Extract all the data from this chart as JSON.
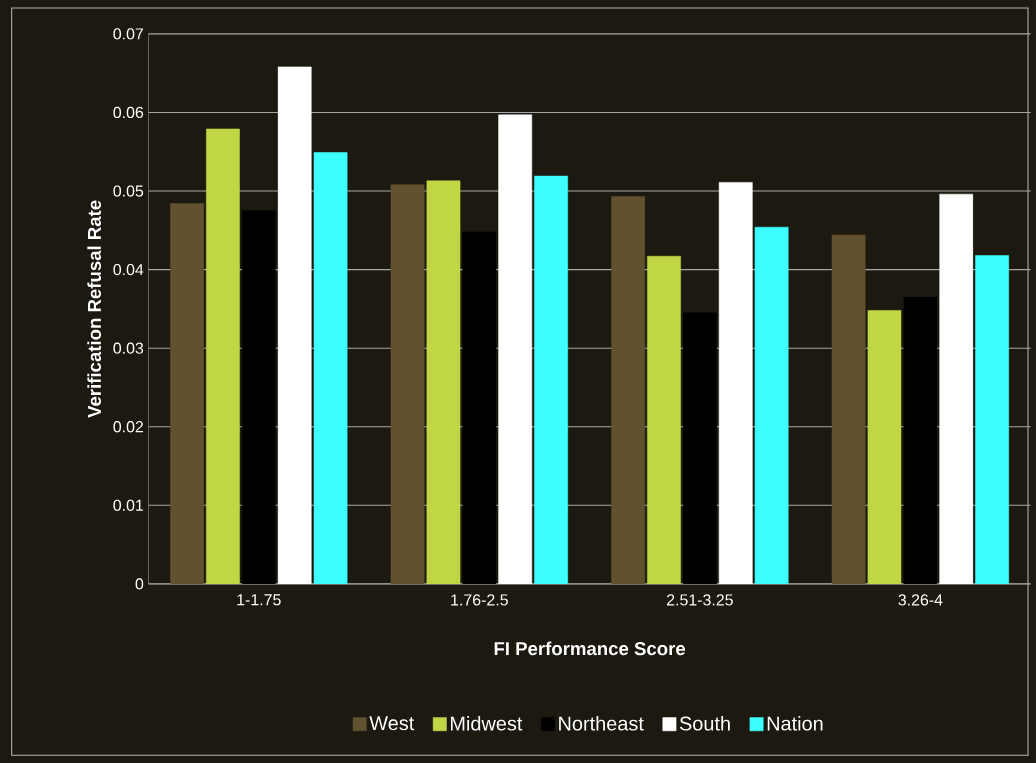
{
  "chart_data": {
    "type": "bar",
    "xlabel": "FI Performance Score",
    "ylabel": "Verification Refusal Rate",
    "categories": [
      "1-1.75",
      "1.76-2.5",
      "2.51-3.25",
      "3.26-4"
    ],
    "series": [
      {
        "name": "West",
        "color": "#62512e",
        "values": [
          0.0484,
          0.0508,
          0.0493,
          0.0444
        ]
      },
      {
        "name": "Midwest",
        "color": "#c0d644",
        "values": [
          0.0579,
          0.0513,
          0.0417,
          0.0348
        ]
      },
      {
        "name": "Northeast",
        "color": "#000000",
        "values": [
          0.0475,
          0.0448,
          0.0345,
          0.0365
        ]
      },
      {
        "name": "South",
        "color": "#ffffff",
        "values": [
          0.0658,
          0.0597,
          0.0511,
          0.0496
        ]
      },
      {
        "name": "Nation",
        "color": "#3effff",
        "values": [
          0.0549,
          0.0519,
          0.0454,
          0.0418
        ]
      }
    ],
    "ylim": [
      0,
      0.07
    ],
    "yticks": [
      0,
      0.01,
      0.02,
      0.03,
      0.04,
      0.05,
      0.06,
      0.07
    ],
    "grid": "y",
    "legend": "bottom"
  }
}
